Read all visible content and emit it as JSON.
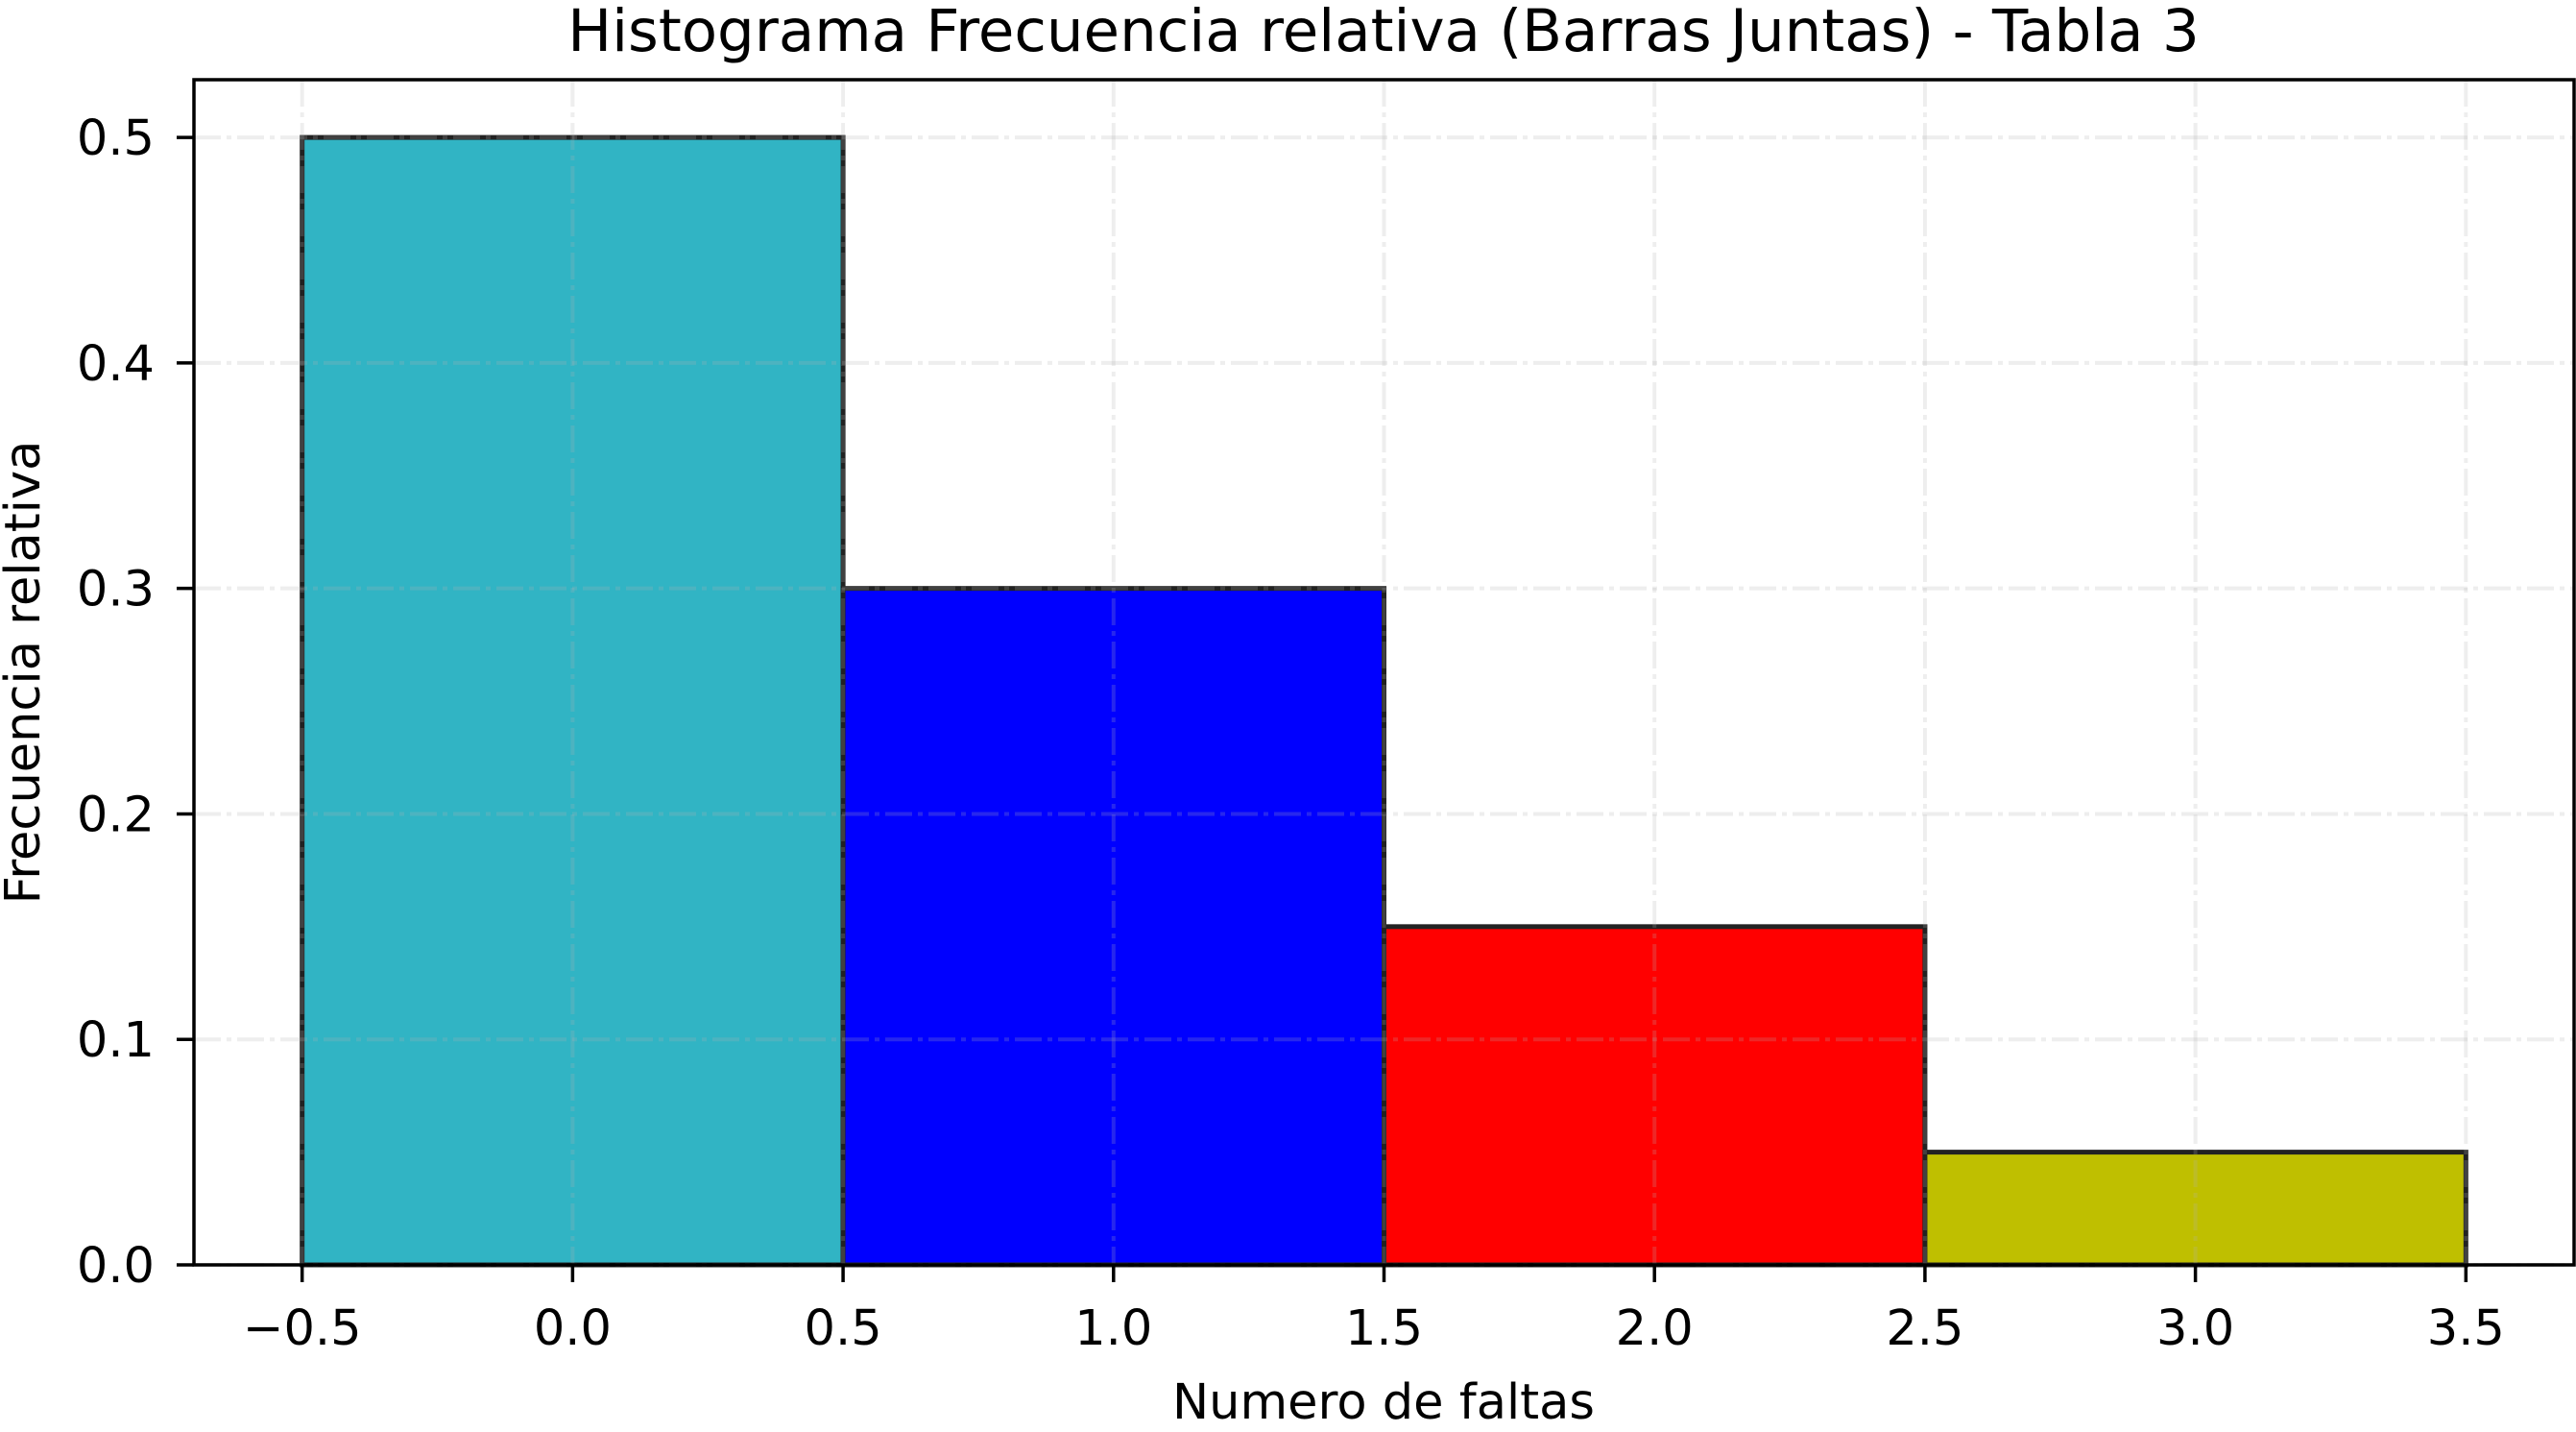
{
  "chart_data": {
    "type": "bar",
    "title": "Histograma Frecuencia relativa (Barras Juntas) - Tabla 3",
    "xlabel": "Numero de faltas",
    "ylabel": "Frecuencia relativa",
    "categories": [
      "0",
      "1",
      "2",
      "3"
    ],
    "x": [
      0,
      1,
      2,
      3
    ],
    "bin_edges": [
      -0.5,
      0.5,
      1.5,
      2.5,
      3.5
    ],
    "values": [
      0.5,
      0.3,
      0.15,
      0.05
    ],
    "bar_width": 1.0,
    "bar_colors": [
      "#31b4c4",
      "#0000ff",
      "#ff0000",
      "#bfbf00"
    ],
    "bar_edge_color": "#222222",
    "xlim": [
      -0.7,
      3.7
    ],
    "ylim": [
      0,
      0.5256
    ],
    "xticks": [
      -0.5,
      0.0,
      0.5,
      1.0,
      1.5,
      2.0,
      2.5,
      3.0,
      3.5
    ],
    "xtick_labels": [
      "−0.5",
      "0.0",
      "0.5",
      "1.0",
      "1.5",
      "2.0",
      "2.5",
      "3.0",
      "3.5"
    ],
    "yticks": [
      0.0,
      0.1,
      0.2,
      0.3,
      0.4,
      0.5
    ],
    "ytick_labels": [
      "0.0",
      "0.1",
      "0.2",
      "0.3",
      "0.4",
      "0.5"
    ],
    "grid": true,
    "grid_style": "dashdot",
    "legend": null
  }
}
